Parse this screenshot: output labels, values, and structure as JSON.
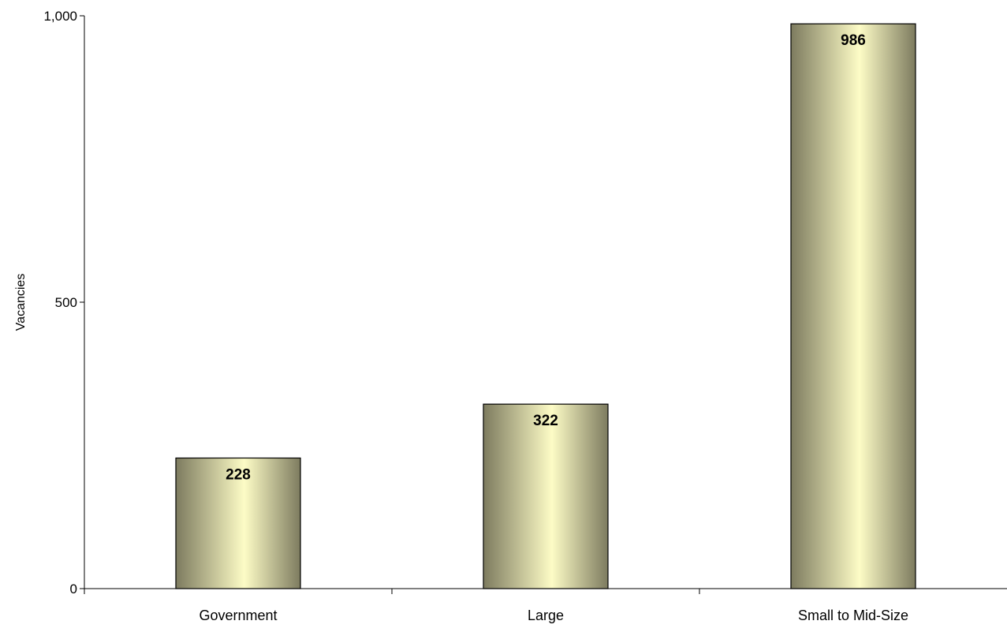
{
  "chart_data": {
    "type": "bar",
    "title": "",
    "xlabel": "",
    "ylabel": "Vacancies",
    "categories": [
      "Government",
      "Large",
      "Small to Mid-Size"
    ],
    "values": [
      228,
      322,
      986
    ],
    "data_labels": [
      "228",
      "322",
      "986"
    ],
    "ylim": [
      0,
      1000
    ],
    "y_ticks": [
      0,
      500,
      1000
    ],
    "y_tick_labels": [
      "0",
      "500",
      "1,000"
    ],
    "grid": false,
    "legend": "none",
    "bar_colors": {
      "edge_dark": "#7d7b5f",
      "center_light": "#fdfcc6",
      "outline": "#000000"
    }
  }
}
